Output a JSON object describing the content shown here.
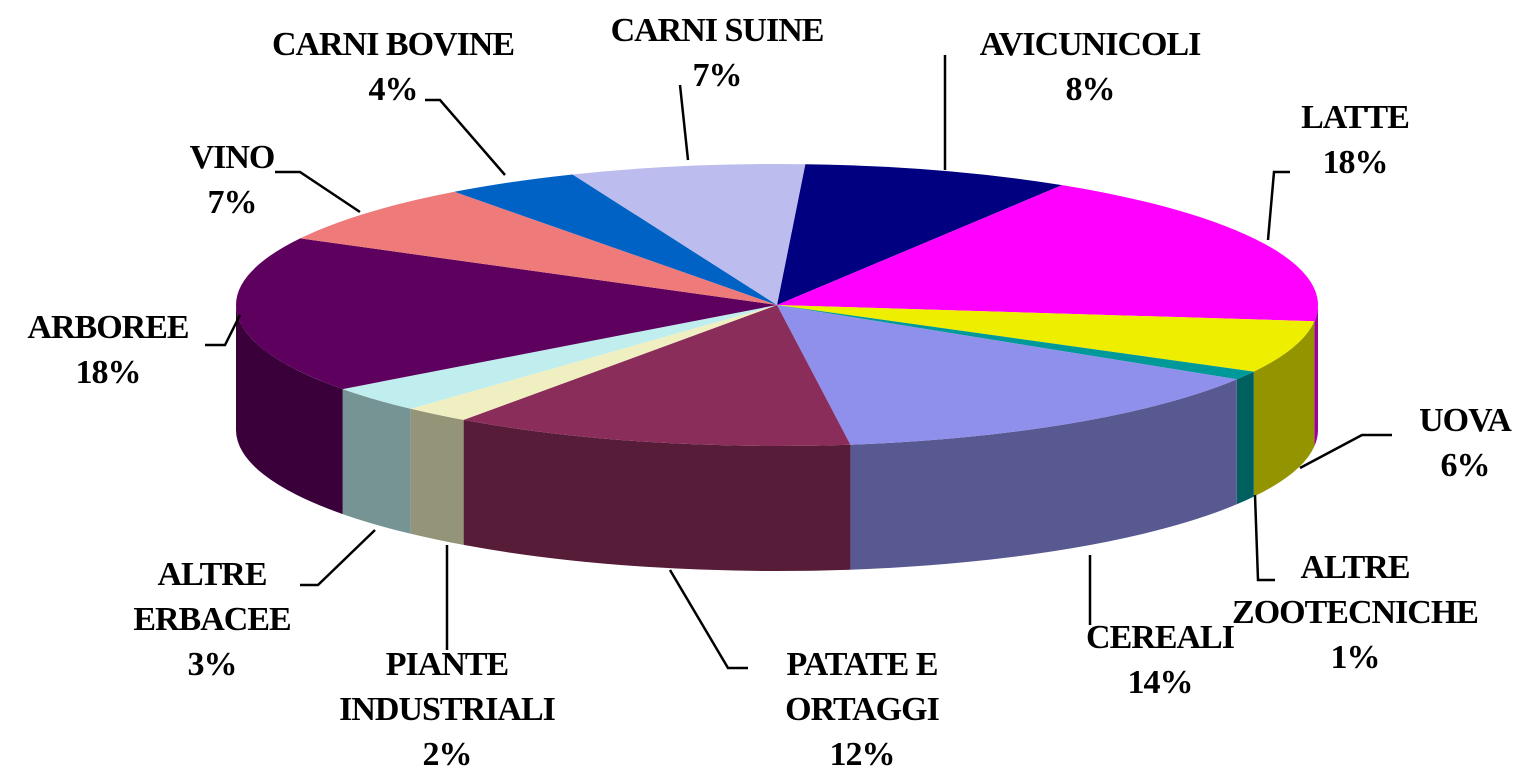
{
  "chart_data": {
    "type": "pie3d",
    "categories": [
      "AVICUNICOLI",
      "LATTE",
      "UOVA",
      "ALTRE ZOOTECNICHE",
      "CEREALI",
      "PATATE E ORTAGGI",
      "PIANTE INDUSTRIALI",
      "ALTRE ERBACEE",
      "ARBOREE",
      "VINO",
      "CARNI BOVINE",
      "CARNI SUINE"
    ],
    "values": [
      8,
      18,
      6,
      1,
      14,
      12,
      2,
      3,
      18,
      7,
      4,
      7
    ],
    "value_labels": [
      "8%",
      "18%",
      "6%",
      "1%",
      "14%",
      "12%",
      "2%",
      "3%",
      "18%",
      "7%",
      "4%",
      "7%"
    ],
    "colors": [
      "#000080",
      "#ff00ff",
      "#eeee00",
      "#009999",
      "#8f8fec",
      "#8b2d5a",
      "#efefc2",
      "#c0eeee",
      "#5e005e",
      "#ef7a7a",
      "#0062c4",
      "#bcbcee"
    ]
  }
}
